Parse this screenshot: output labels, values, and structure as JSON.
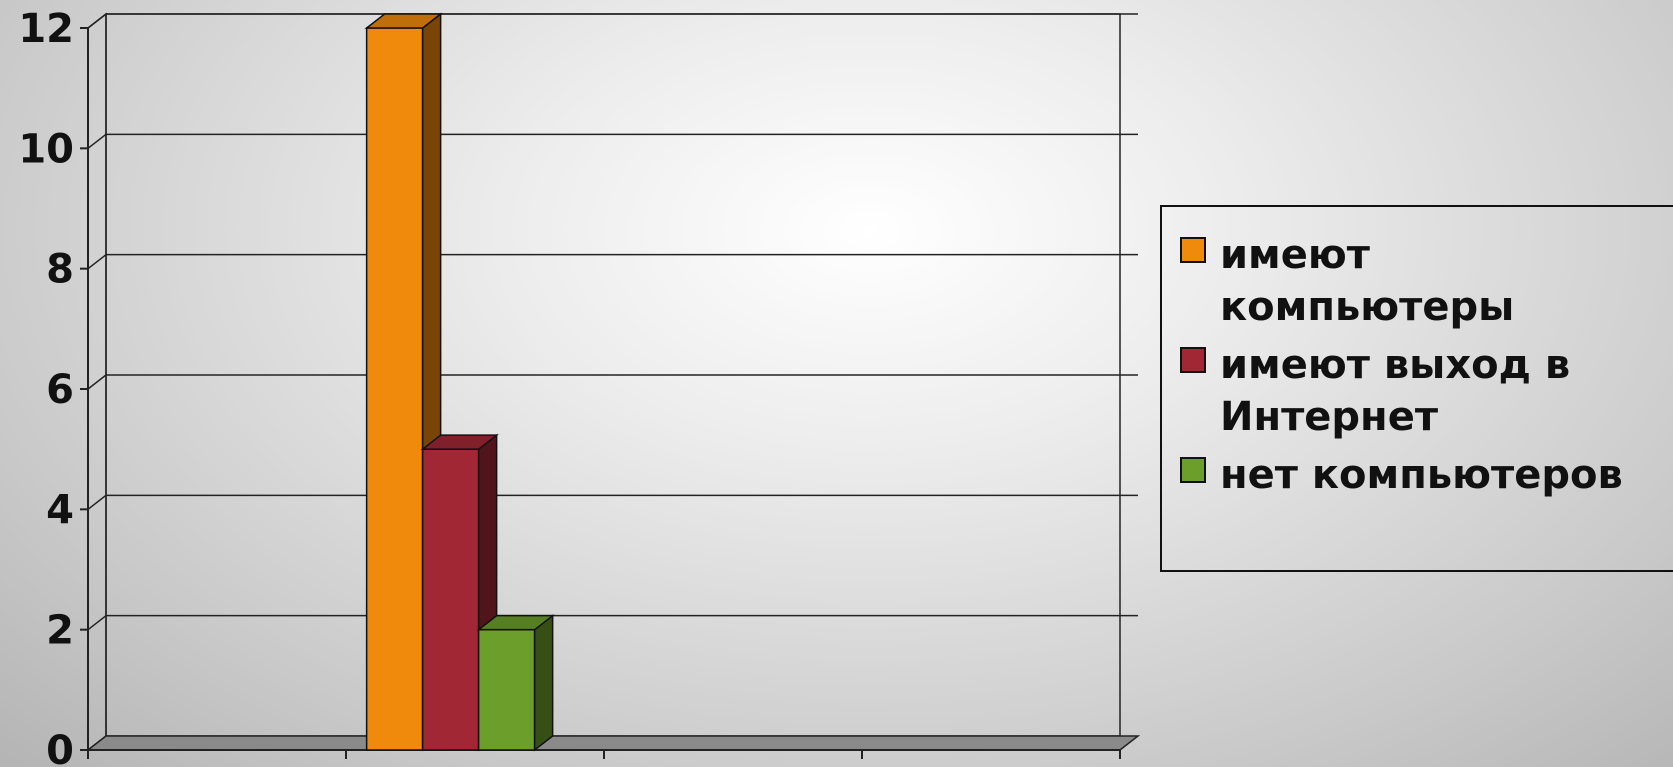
{
  "chart_data": {
    "type": "bar",
    "categories": [
      ""
    ],
    "series": [
      {
        "name": " имеют\nкомпьютеры",
        "values": [
          12
        ],
        "color": "#f08a0c"
      },
      {
        "name": "имеют выход в\nИнтернет",
        "values": [
          5
        ],
        "color": "#a12735"
      },
      {
        "name": "нет компьютеров",
        "values": [
          2
        ],
        "color": "#6b9e2a"
      }
    ],
    "y_ticks": [
      "0",
      "2",
      "4",
      "6",
      "8",
      "10",
      "12"
    ],
    "ylim": [
      0,
      12
    ],
    "grid": true,
    "legend": "right",
    "style": "3d-column"
  }
}
